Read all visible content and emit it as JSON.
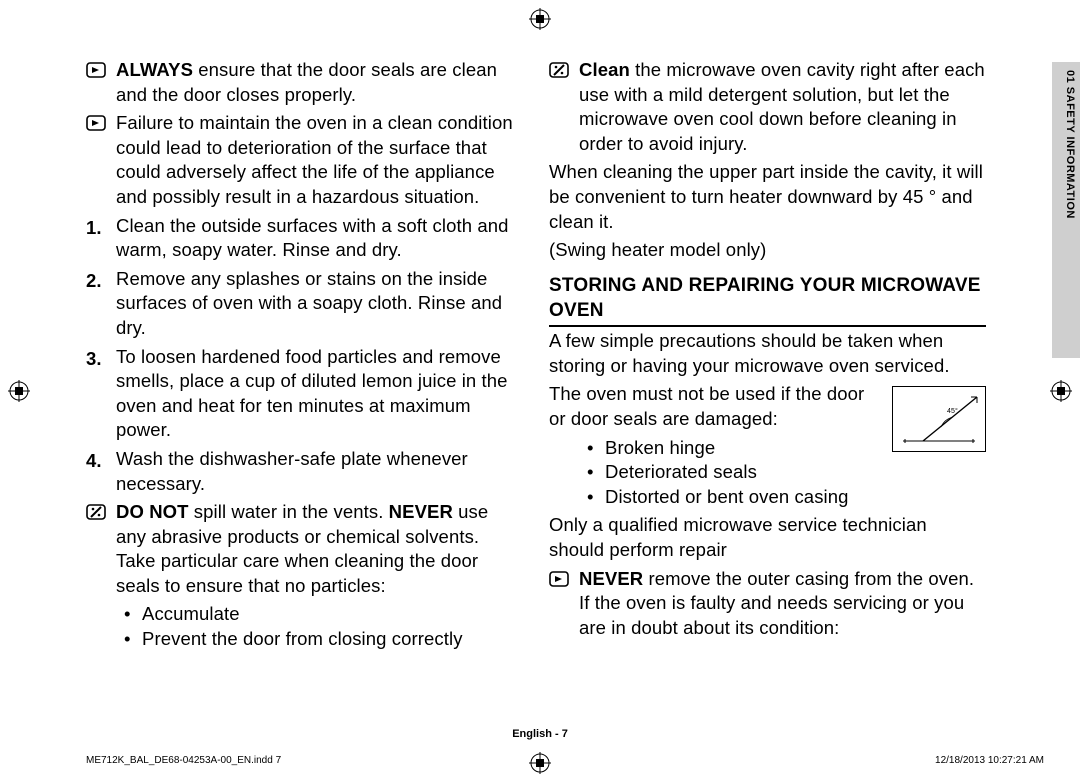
{
  "side_tab": {
    "label": "01  SAFETY INFORMATION",
    "bg": "#cfcfcf"
  },
  "left": {
    "items": [
      {
        "kind": "icon",
        "icon": "arrow-box",
        "html": "<b>ALWAYS</b> ensure that the door seals are clean and the door closes properly."
      },
      {
        "kind": "icon",
        "icon": "arrow-box",
        "html": "Failure to maintain the oven in a clean condition could lead to deterioration of the surface that could adversely affect the life of the appliance and possibly result in a hazardous situation."
      },
      {
        "kind": "num",
        "n": "1.",
        "html": "Clean the outside surfaces with a soft cloth and warm, soapy water. Rinse and dry."
      },
      {
        "kind": "num",
        "n": "2.",
        "html": "Remove any splashes or stains on the inside surfaces of oven with a soapy cloth. Rinse and dry."
      },
      {
        "kind": "num",
        "n": "3.",
        "html": "To loosen hardened food particles and remove smells, place a cup of diluted lemon juice in the oven and heat for ten minutes at maximum power."
      },
      {
        "kind": "num",
        "n": "4.",
        "html": "Wash the dishwasher-safe plate whenever necessary."
      },
      {
        "kind": "icon",
        "icon": "slash-box",
        "html": "<b>DO NOT</b> spill water in the vents. <b>NEVER</b> use any abrasive products or chemical solvents. Take particular care when cleaning the door seals to ensure that no particles:"
      }
    ],
    "bullets1": [
      "Accumulate",
      "Prevent the door from closing correctly"
    ]
  },
  "right": {
    "top": [
      {
        "kind": "icon",
        "icon": "slash-box",
        "html": "<b>Clean</b> the microwave oven cavity right after each use with a mild detergent solution, but let the microwave oven cool down before cleaning in order to avoid injury."
      }
    ],
    "para1": "When cleaning the upper part inside the cavity, it will be convenient to turn heater downward by 45 ° and clean it.",
    "para2": "(Swing heater model only)",
    "heading": "STORING AND REPAIRING YOUR MICROWAVE OVEN",
    "para3": "A few simple precautions should be taken when storing or having your microwave oven serviced.",
    "para4": "The oven must not be used if the door or door seals are damaged:",
    "bullets2": [
      "Broken hinge",
      "Deteriorated seals",
      "Distorted or bent oven casing"
    ],
    "para5": "Only a qualified microwave service technician should perform repair",
    "never_item": {
      "kind": "icon",
      "icon": "arrow-box",
      "html": "<b>NEVER</b> remove the outer casing from the oven. If the oven is faulty and needs servicing or you are in doubt about its condition:"
    },
    "figure_angle_label": "45°"
  },
  "footer": {
    "page": "English - 7",
    "file": "ME712K_BAL_DE68-04253A-00_EN.indd   7",
    "date": "12/18/2013   10:27:21 AM"
  },
  "colors": {
    "text": "#000000",
    "bg": "#ffffff",
    "tab": "#cfcfcf",
    "rule": "#000000"
  }
}
